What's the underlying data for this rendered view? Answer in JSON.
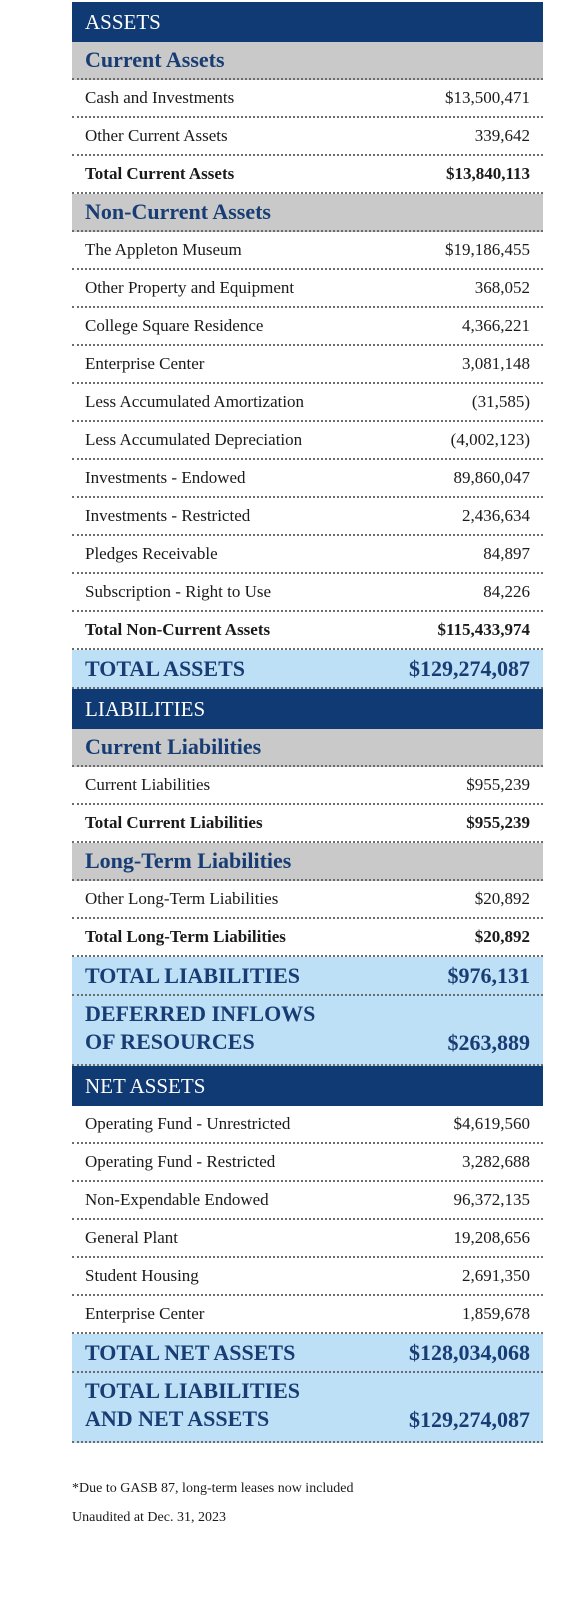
{
  "assets": {
    "heading": "ASSETS",
    "current": {
      "heading": "Current Assets",
      "items": [
        {
          "label": "Cash and Investments",
          "value": "$13,500,471"
        },
        {
          "label": "Other Current Assets",
          "value": "339,642"
        }
      ],
      "total": {
        "label": "Total Current Assets",
        "value": "$13,840,113"
      }
    },
    "noncurrent": {
      "heading": "Non-Current Assets",
      "items": [
        {
          "label": "The Appleton Museum",
          "value": "$19,186,455"
        },
        {
          "label": "Other Property and Equipment",
          "value": "368,052"
        },
        {
          "label": "College Square Residence",
          "value": "4,366,221"
        },
        {
          "label": "Enterprise Center",
          "value": "3,081,148"
        },
        {
          "label": "Less Accumulated Amortization",
          "value": "(31,585)"
        },
        {
          "label": "Less Accumulated Depreciation",
          "value": "(4,002,123)"
        },
        {
          "label": "Investments - Endowed",
          "value": "89,860,047"
        },
        {
          "label": "Investments - Restricted",
          "value": "2,436,634"
        },
        {
          "label": "Pledges Receivable",
          "value": "84,897"
        },
        {
          "label": "Subscription - Right to Use",
          "value": "84,226"
        }
      ],
      "total": {
        "label": "Total Non-Current Assets",
        "value": "$115,433,974"
      }
    },
    "grand_total": {
      "label": "TOTAL ASSETS",
      "value": "$129,274,087"
    }
  },
  "liabilities": {
    "heading": "LIABILITIES",
    "current": {
      "heading": "Current Liabilities",
      "items": [
        {
          "label": "Current Liabilities",
          "value": "$955,239"
        }
      ],
      "total": {
        "label": "Total Current Liabilities",
        "value": "$955,239"
      }
    },
    "longterm": {
      "heading": "Long-Term Liabilities",
      "items": [
        {
          "label": "Other Long-Term Liabilities",
          "value": "$20,892"
        }
      ],
      "total": {
        "label": "Total Long-Term Liabilities",
        "value": "$20,892"
      }
    },
    "grand_total": {
      "label": "TOTAL LIABILITIES",
      "value": "$976,131"
    },
    "deferred": {
      "label_line1": "DEFERRED INFLOWS",
      "label_line2": "OF RESOURCES",
      "value": "$263,889"
    }
  },
  "net_assets": {
    "heading": "NET ASSETS",
    "items": [
      {
        "label": "Operating Fund - Unrestricted",
        "value": "$4,619,560"
      },
      {
        "label": "Operating Fund - Restricted",
        "value": "3,282,688"
      },
      {
        "label": "Non-Expendable Endowed",
        "value": "96,372,135"
      },
      {
        "label": "General Plant",
        "value": "19,208,656"
      },
      {
        "label": "Student Housing",
        "value": "2,691,350"
      },
      {
        "label": "Enterprise Center",
        "value": "1,859,678"
      }
    ],
    "grand_total": {
      "label": "TOTAL NET ASSETS",
      "value": "$128,034,068"
    },
    "final_total": {
      "label_line1": "TOTAL LIABILITIES",
      "label_line2": "AND NET ASSETS",
      "value": "$129,274,087"
    }
  },
  "notes": {
    "footnote": "*Due to GASB 87, long-term leases now included",
    "status": "Unaudited at Dec. 31, 2023"
  },
  "colors": {
    "band": "#0f3a73",
    "subheading_bg": "#c9c9c9",
    "subheading_text": "#173d74",
    "total_bg": "#bde0f6"
  }
}
